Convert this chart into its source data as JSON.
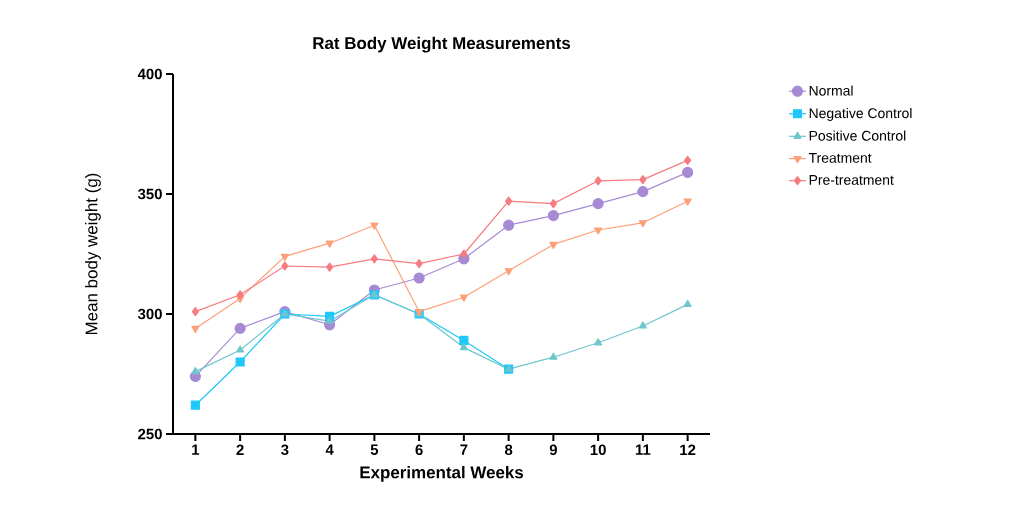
{
  "chart_data": {
    "type": "line",
    "title": "Rat Body Weight Measurements",
    "xlabel": "Experimental Weeks",
    "ylabel": "Mean body weight (g)",
    "x": [
      1,
      2,
      3,
      4,
      5,
      6,
      7,
      8,
      9,
      10,
      11,
      12
    ],
    "xlim": [
      0.5,
      12.5
    ],
    "xticks": [
      1,
      2,
      3,
      4,
      5,
      6,
      7,
      8,
      9,
      10,
      11,
      12
    ],
    "ylim": [
      250,
      400
    ],
    "yticks": [
      250,
      300,
      350,
      400
    ],
    "grid": false,
    "legend": "right",
    "line_style": "solid",
    "series": [
      {
        "name": "Normal",
        "color": "#a68bd4",
        "marker": "circle",
        "values": [
          274,
          294,
          301,
          295.5,
          310,
          315,
          323,
          337,
          341,
          346,
          351,
          359
        ]
      },
      {
        "name": "Negative Control",
        "color": "#1ec8fa",
        "marker": "square",
        "values": [
          262,
          280,
          300,
          299,
          308,
          300,
          289,
          277,
          null,
          null,
          null,
          null
        ]
      },
      {
        "name": "Positive Control",
        "color": "#6ec6cc",
        "marker": "triangle",
        "values": [
          276,
          285,
          300,
          297,
          308,
          300,
          286,
          277,
          282,
          288,
          295,
          304
        ]
      },
      {
        "name": "Treatment",
        "color": "#fca07a",
        "marker": "triangle-down",
        "values": [
          294,
          306.5,
          324,
          329.5,
          337,
          301,
          307,
          318,
          329,
          335,
          338,
          347
        ]
      },
      {
        "name": "Pre-treatment",
        "color": "#f77b80",
        "marker": "diamond",
        "values": [
          301,
          308,
          320,
          319.5,
          323,
          321,
          325,
          347,
          346,
          355.5,
          356,
          364
        ]
      }
    ]
  }
}
